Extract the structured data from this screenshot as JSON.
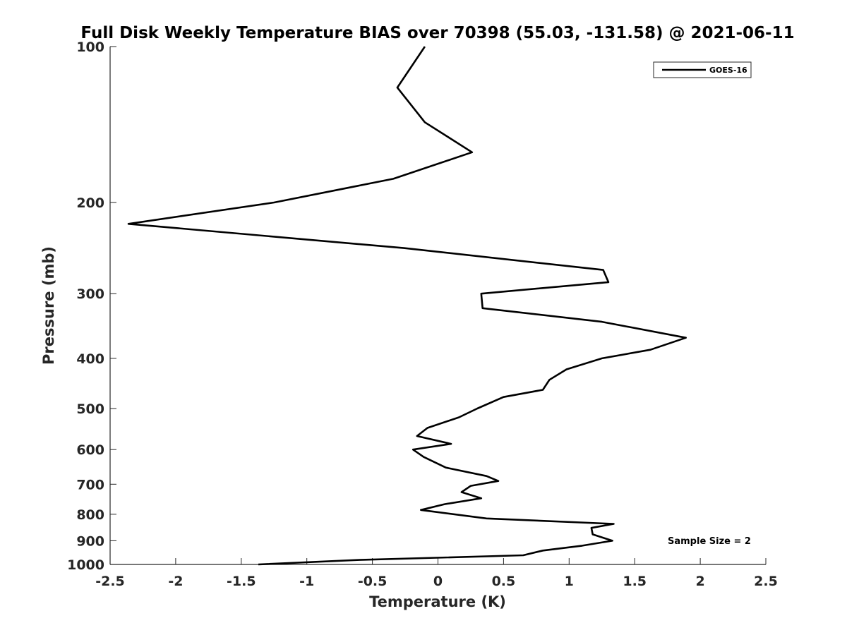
{
  "chart_data": {
    "type": "line",
    "title": "Full Disk Weekly Temperature BIAS over 70398 (55.03, -131.58) @ 2021-06-11",
    "xlabel": "Temperature (K)",
    "ylabel": "Pressure (mb)",
    "xlim": [
      -2.5,
      2.5
    ],
    "ylim": [
      100,
      1000
    ],
    "y_scale": "log",
    "y_reversed": true,
    "x_ticks": [
      "-2.5",
      "-2",
      "-1.5",
      "-1",
      "-0.5",
      "0",
      "0.5",
      "1",
      "1.5",
      "2",
      "2.5"
    ],
    "y_ticks": [
      "100",
      "200",
      "300",
      "400",
      "500",
      "600",
      "700",
      "800",
      "900",
      "1000"
    ],
    "grid": false,
    "legend_position": "top-right",
    "series": [
      {
        "name": "GOES-16",
        "color": "#000000",
        "points": [
          {
            "x": -0.1,
            "y": 100
          },
          {
            "x": -0.31,
            "y": 120
          },
          {
            "x": -0.1,
            "y": 140
          },
          {
            "x": 0.26,
            "y": 160
          },
          {
            "x": -0.34,
            "y": 180
          },
          {
            "x": -1.25,
            "y": 200
          },
          {
            "x": -2.36,
            "y": 220
          },
          {
            "x": -0.26,
            "y": 245
          },
          {
            "x": 1.26,
            "y": 270
          },
          {
            "x": 1.3,
            "y": 285
          },
          {
            "x": 0.33,
            "y": 300
          },
          {
            "x": 0.34,
            "y": 320
          },
          {
            "x": 1.25,
            "y": 340
          },
          {
            "x": 1.89,
            "y": 365
          },
          {
            "x": 1.62,
            "y": 385
          },
          {
            "x": 1.25,
            "y": 400
          },
          {
            "x": 0.98,
            "y": 420
          },
          {
            "x": 0.85,
            "y": 440
          },
          {
            "x": 0.8,
            "y": 460
          },
          {
            "x": 0.5,
            "y": 475
          },
          {
            "x": 0.3,
            "y": 500
          },
          {
            "x": 0.16,
            "y": 520
          },
          {
            "x": -0.08,
            "y": 545
          },
          {
            "x": -0.16,
            "y": 565
          },
          {
            "x": 0.1,
            "y": 585
          },
          {
            "x": -0.19,
            "y": 600
          },
          {
            "x": -0.11,
            "y": 620
          },
          {
            "x": 0.06,
            "y": 650
          },
          {
            "x": 0.37,
            "y": 675
          },
          {
            "x": 0.46,
            "y": 690
          },
          {
            "x": 0.25,
            "y": 705
          },
          {
            "x": 0.18,
            "y": 725
          },
          {
            "x": 0.33,
            "y": 745
          },
          {
            "x": 0.05,
            "y": 765
          },
          {
            "x": -0.13,
            "y": 785
          },
          {
            "x": 0.37,
            "y": 815
          },
          {
            "x": 1.34,
            "y": 835
          },
          {
            "x": 1.17,
            "y": 850
          },
          {
            "x": 1.18,
            "y": 875
          },
          {
            "x": 1.33,
            "y": 900
          },
          {
            "x": 1.1,
            "y": 920
          },
          {
            "x": 0.8,
            "y": 940
          },
          {
            "x": 0.65,
            "y": 960
          },
          {
            "x": -0.6,
            "y": 980
          },
          {
            "x": -1.37,
            "y": 1000
          }
        ]
      }
    ],
    "annotations": [
      "Sample Size = 2"
    ]
  }
}
